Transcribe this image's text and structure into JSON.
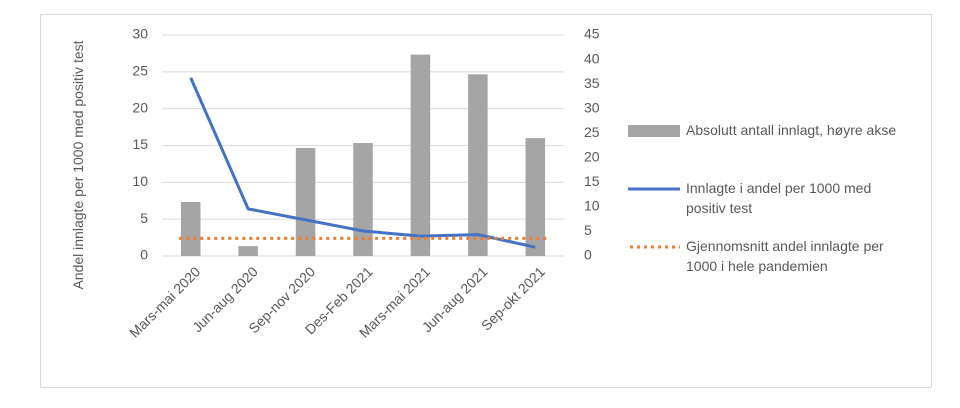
{
  "chart_data": {
    "type": "combo",
    "y_label": "Andel innlagte per 1000 med positiv test",
    "categories": [
      "Mars-mai 2020",
      "Jun-aug 2020",
      "Sep-nov 2020",
      "Des-Feb 2021",
      "Mars-mai 2021",
      "Jun-aug 2021",
      "Sep-okt 2021"
    ],
    "series": [
      {
        "name": "Absolutt antall innlagt, høyre akse",
        "type": "bar",
        "axis": "y2",
        "color": "#a5a5a5",
        "values": [
          11,
          2,
          22,
          23,
          41,
          37,
          24
        ]
      },
      {
        "name": "Innlagte i andel per 1000 med positiv test",
        "type": "line",
        "color": "#4472c4",
        "values": [
          24.2,
          6.4,
          4.9,
          3.4,
          2.7,
          2.9,
          1.2
        ]
      },
      {
        "name": "Gjennomsnitt andel innlagte per 1000 i hele pandemien",
        "type": "hline",
        "color": "#ed7d31",
        "value": 2.4
      }
    ],
    "ylim": [
      0,
      30
    ],
    "yticks": [
      0,
      5,
      10,
      15,
      20,
      25,
      30
    ],
    "y2lim": [
      0,
      45
    ],
    "y2ticks": [
      0,
      5,
      10,
      15,
      20,
      25,
      30,
      35,
      40,
      45
    ],
    "grid": true,
    "legend": "right"
  }
}
